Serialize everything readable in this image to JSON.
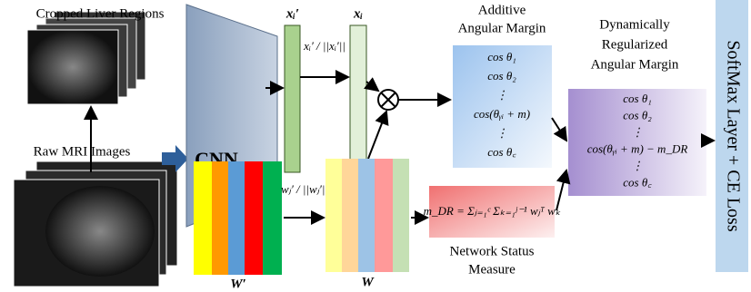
{
  "images": {
    "cropped_label": "Cropped Liver Regions",
    "raw_label": "Raw MRI Images"
  },
  "cnn": {
    "label": "CNN"
  },
  "features": {
    "x_prime": "xᵢ′",
    "x": "xᵢ",
    "normalize": "xᵢ′ / ||xᵢ′||"
  },
  "weights": {
    "w_prime": "W′",
    "w": "W",
    "normalize": "wⱼ′ / ||wⱼ′||"
  },
  "additive_margin": {
    "title": [
      "Additive",
      "Angular Margin"
    ],
    "lines": [
      "cos θ₁",
      "cos θ₂",
      "⋮",
      "cos(θᵧᵢ + m)",
      "⋮",
      "cos θ꜀"
    ]
  },
  "dynamic_margin": {
    "title": [
      "Dynamically",
      "Regularized",
      "Angular Margin"
    ],
    "lines": [
      "cos θ₁",
      "cos θ₂",
      "⋮",
      "cos(θᵧᵢ + m) − m_DR",
      "⋮",
      "cos θ꜀"
    ]
  },
  "network_status": {
    "formula": "m_DR = Σⱼ₌₁ᶜ Σₖ₌₁ʲ⁻¹ wⱼᵀ wₖ",
    "title": [
      "Network Status",
      "Measure"
    ]
  },
  "output": {
    "label": "SoftMax Layer + CE Loss"
  }
}
